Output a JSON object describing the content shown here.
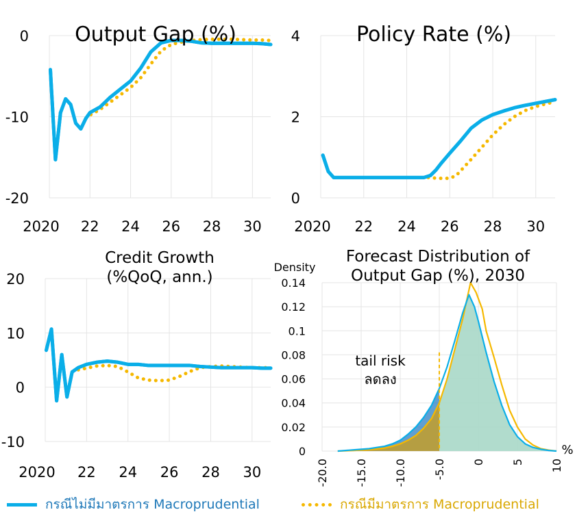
{
  "colors": {
    "no_macro": "#0aaee8",
    "with_macro": "#f5b800",
    "no_macro_text": "#1e78b8",
    "with_macro_text": "#d9a700",
    "density_no_fill": "#2a7fc4",
    "density_with_fill": "#c8a02a",
    "overlap_fill": "#a8d8c8",
    "grid": "#e4e4e4"
  },
  "legend": {
    "no_macro": "กรณีไม่มีมาตรการ Macroprudential",
    "with_macro": "กรณีมีมาตรการ Macroprudential"
  },
  "chart_data": [
    {
      "type": "line",
      "title": "Output Gap (%)",
      "xlim": [
        2020,
        2030.9
      ],
      "ylim": [
        -20,
        0
      ],
      "xticks": [
        2020,
        2022,
        2024,
        2026,
        2028,
        2030
      ],
      "xtick_labels": [
        "2020",
        "22",
        "24",
        "26",
        "28",
        "30"
      ],
      "yticks": [
        -20,
        -10,
        0
      ],
      "ytick_labels": [
        "-20",
        "-10",
        "0"
      ],
      "grid": true,
      "series": [
        {
          "key": "no_macro",
          "x": [
            2020.05,
            2020.3,
            2020.55,
            2020.8,
            2021.05,
            2021.3,
            2021.55,
            2021.8,
            2022.0,
            2022.5,
            2023.0,
            2023.5,
            2024.0,
            2024.5,
            2025.0,
            2025.5,
            2026.0,
            2026.5,
            2027.0,
            2027.5,
            2028.0,
            2028.5,
            2029.0,
            2029.5,
            2030.0,
            2030.5,
            2030.9
          ],
          "y": [
            -4.2,
            -15.3,
            -9.5,
            -7.8,
            -8.5,
            -10.8,
            -11.5,
            -10.2,
            -9.5,
            -8.8,
            -7.6,
            -6.6,
            -5.6,
            -4.0,
            -2.0,
            -0.9,
            -0.6,
            -0.6,
            -0.7,
            -0.9,
            -0.95,
            -0.95,
            -0.95,
            -0.95,
            -0.95,
            -1.0,
            -1.1
          ]
        },
        {
          "key": "with_macro",
          "x": [
            2021.8,
            2022.0,
            2022.5,
            2023.0,
            2023.5,
            2024.0,
            2024.5,
            2025.0,
            2025.5,
            2026.0,
            2026.5,
            2027.0,
            2027.5,
            2028.0,
            2028.5,
            2029.0,
            2029.5,
            2030.0,
            2030.5,
            2030.9
          ],
          "y": [
            -10.2,
            -9.8,
            -9.1,
            -8.2,
            -7.3,
            -6.4,
            -5.2,
            -3.5,
            -1.9,
            -1.1,
            -0.8,
            -0.6,
            -0.5,
            -0.45,
            -0.45,
            -0.45,
            -0.5,
            -0.55,
            -0.55,
            -0.6
          ]
        }
      ]
    },
    {
      "type": "line",
      "title": "Policy Rate (%)",
      "xlim": [
        2020,
        2030.9
      ],
      "ylim": [
        0,
        4
      ],
      "xticks": [
        2020,
        2022,
        2024,
        2026,
        2028,
        2030
      ],
      "xtick_labels": [
        "2020",
        "22",
        "24",
        "26",
        "28",
        "30"
      ],
      "yticks": [
        0,
        2,
        4
      ],
      "ytick_labels": [
        "0",
        "2",
        "4"
      ],
      "grid": true,
      "series": [
        {
          "key": "no_macro",
          "x": [
            2020.1,
            2020.35,
            2020.6,
            2021.0,
            2022.0,
            2023.0,
            2024.0,
            2024.8,
            2025.1,
            2025.35,
            2025.6,
            2026.0,
            2026.5,
            2027.0,
            2027.5,
            2028.0,
            2028.5,
            2029.0,
            2029.5,
            2030.0,
            2030.5,
            2030.9
          ],
          "y": [
            1.05,
            0.65,
            0.5,
            0.5,
            0.5,
            0.5,
            0.5,
            0.5,
            0.55,
            0.68,
            0.85,
            1.1,
            1.4,
            1.72,
            1.92,
            2.05,
            2.14,
            2.22,
            2.28,
            2.33,
            2.38,
            2.42
          ]
        },
        {
          "key": "with_macro",
          "x": [
            2025.0,
            2025.5,
            2026.0,
            2026.3,
            2026.6,
            2027.0,
            2027.5,
            2028.0,
            2028.5,
            2029.0,
            2029.5,
            2030.0,
            2030.5,
            2030.9
          ],
          "y": [
            0.5,
            0.48,
            0.48,
            0.55,
            0.72,
            0.95,
            1.25,
            1.55,
            1.8,
            2.0,
            2.15,
            2.25,
            2.32,
            2.37
          ]
        }
      ]
    },
    {
      "type": "line",
      "title": "Credit Growth",
      "subtitle": "(%QoQ, ann.)",
      "xlim": [
        2020,
        2030.9
      ],
      "ylim": [
        -10,
        20
      ],
      "xticks": [
        2020,
        2022,
        2024,
        2026,
        2028,
        2030
      ],
      "xtick_labels": [
        "2020",
        "22",
        "24",
        "26",
        "28",
        "30"
      ],
      "yticks": [
        -10,
        0,
        10,
        20
      ],
      "ytick_labels": [
        "-10",
        "0",
        "10",
        "20"
      ],
      "grid": true,
      "series": [
        {
          "key": "no_macro",
          "x": [
            2020.05,
            2020.3,
            2020.55,
            2020.8,
            2021.05,
            2021.3,
            2021.6,
            2022.0,
            2022.5,
            2023.0,
            2023.5,
            2024.0,
            2024.5,
            2025.0,
            2025.5,
            2026.0,
            2026.5,
            2027.0,
            2027.5,
            2028.0,
            2028.5,
            2029.0,
            2029.5,
            2030.0,
            2030.5,
            2030.9
          ],
          "y": [
            6.8,
            10.7,
            -2.5,
            6.0,
            -1.8,
            2.8,
            3.6,
            4.2,
            4.6,
            4.8,
            4.6,
            4.2,
            4.2,
            4.0,
            4.0,
            4.0,
            4.0,
            4.0,
            3.8,
            3.7,
            3.6,
            3.6,
            3.6,
            3.6,
            3.5,
            3.5
          ]
        },
        {
          "key": "with_macro",
          "x": [
            2021.6,
            2022.0,
            2022.5,
            2023.0,
            2023.5,
            2024.0,
            2024.5,
            2025.0,
            2025.5,
            2026.0,
            2026.5,
            2027.0,
            2027.5,
            2028.0,
            2028.5,
            2029.0,
            2029.5,
            2030.0,
            2030.5,
            2030.9
          ],
          "y": [
            3.2,
            3.5,
            3.9,
            4.0,
            3.8,
            2.8,
            1.7,
            1.3,
            1.2,
            1.3,
            2.0,
            2.9,
            3.6,
            3.8,
            3.9,
            3.8,
            3.7,
            3.6,
            3.6,
            3.6
          ]
        }
      ]
    },
    {
      "type": "area",
      "title": "Forecast Distribution of",
      "subtitle": "Output Gap (%), 2030",
      "ylabel": "Density",
      "xlabel": "%",
      "xlim": [
        -20,
        10
      ],
      "ylim": [
        0,
        0.14
      ],
      "xticks": [
        -20,
        -15,
        -10,
        -5,
        0,
        5,
        10
      ],
      "xtick_labels": [
        "-20.0",
        "-15.0",
        "-10.0",
        "-5.0",
        "0",
        "5",
        "10"
      ],
      "yticks": [
        0,
        0.02,
        0.04,
        0.06,
        0.08,
        0.1,
        0.12,
        0.14
      ],
      "ytick_labels": [
        "0",
        "0.02",
        "0.04",
        "0.06",
        "0.08",
        "0.1",
        "0.12",
        "0.14"
      ],
      "grid": true,
      "annotation": "tail risk\nลดลง",
      "threshold_x": -5,
      "series": [
        {
          "key": "no_macro",
          "x": [
            -18,
            -16,
            -14,
            -12,
            -11,
            -10,
            -9,
            -8,
            -7,
            -6,
            -5,
            -4,
            -3,
            -2,
            -1.2,
            -0.5,
            0,
            1,
            2,
            3,
            4,
            5,
            6,
            7,
            8,
            9,
            10
          ],
          "y": [
            0,
            0.001,
            0.002,
            0.004,
            0.006,
            0.009,
            0.014,
            0.02,
            0.028,
            0.038,
            0.052,
            0.07,
            0.092,
            0.115,
            0.13,
            0.12,
            0.108,
            0.082,
            0.058,
            0.038,
            0.022,
            0.012,
            0.006,
            0.003,
            0.0015,
            0.0005,
            0
          ]
        },
        {
          "key": "with_macro",
          "x": [
            -18,
            -16,
            -14,
            -12,
            -11,
            -10,
            -9,
            -8,
            -7,
            -6,
            -5,
            -4,
            -3,
            -2,
            -1.5,
            -1,
            -0.3,
            0.5,
            1,
            2,
            3,
            4,
            5,
            6,
            7,
            8,
            9,
            10
          ],
          "y": [
            0,
            0.0005,
            0.0012,
            0.0025,
            0.004,
            0.006,
            0.009,
            0.013,
            0.019,
            0.027,
            0.04,
            0.06,
            0.085,
            0.11,
            0.125,
            0.14,
            0.132,
            0.118,
            0.1,
            0.078,
            0.055,
            0.034,
            0.02,
            0.01,
            0.005,
            0.002,
            0.0008,
            0
          ]
        }
      ]
    }
  ]
}
